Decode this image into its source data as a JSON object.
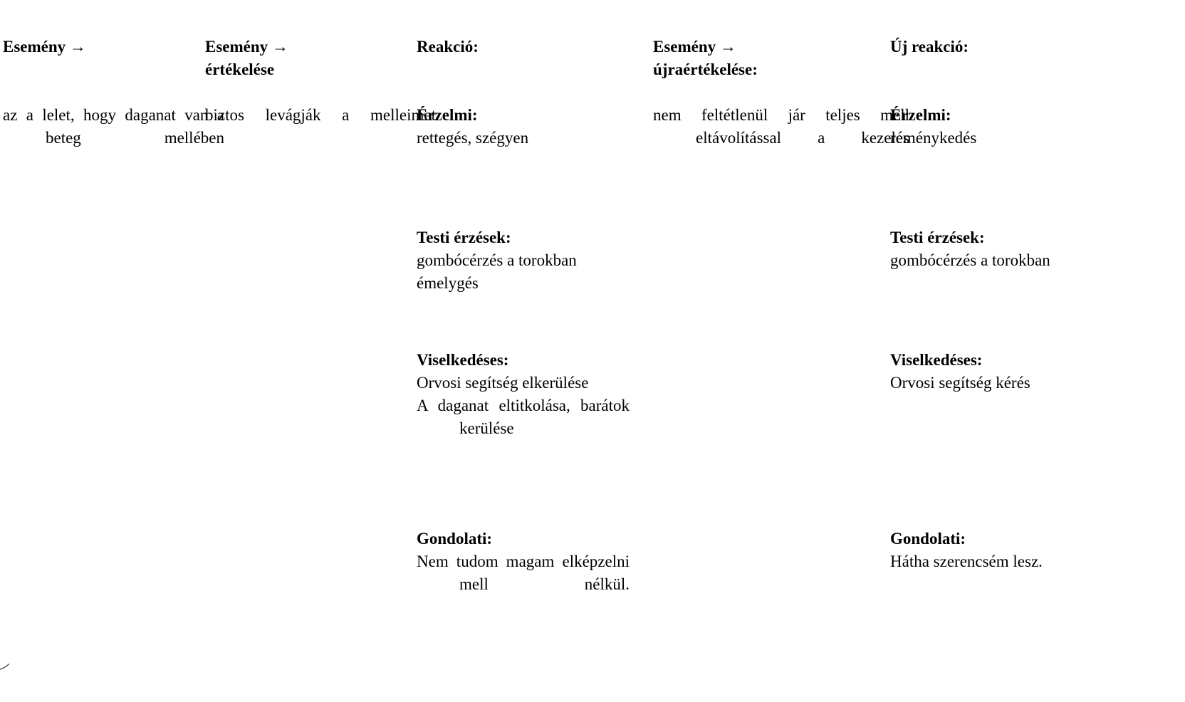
{
  "headers": {
    "col1": "Esemény →",
    "col2_line1": "Esemény →",
    "col2_line2": "értékelése",
    "col3": "Reakció:",
    "col4_line1": "Esemény →",
    "col4_line2": "újraértékelése:",
    "col5": "Új reakció:"
  },
  "event": "az a lelet, hogy daganat van a beteg mellében",
  "evaluation": "biztos levágják a melleimet",
  "reevaluation": "nem feltétlenül jár teljes mell eltávolítással a kezelés",
  "reaction": {
    "emotional_title": "Érzelmi:",
    "emotional_text": "rettegés, szégyen",
    "physical_title": "Testi érzések:",
    "physical_line1": "gombócérzés a torokban",
    "physical_line2": "émelygés",
    "behavioral_title": "Viselkedéses:",
    "behavioral_line1": "Orvosi segítség elkerülése",
    "behavioral_line2": "A daganat eltitkolása, barátok kerülése",
    "thought_title": "Gondolati:",
    "thought_text": "Nem tudom magam elképzelni mell nélkül."
  },
  "new_reaction": {
    "emotional_title": "Érzelmi:",
    "emotional_text": "reménykedés",
    "physical_title": "Testi érzések:",
    "physical_line1": "gombócérzés a torokban",
    "behavioral_title": "Viselkedéses:",
    "behavioral_line1": "Orvosi segítség kérés",
    "thought_title": "Gondolati:",
    "thought_text": "Hátha szerencsém lesz."
  }
}
